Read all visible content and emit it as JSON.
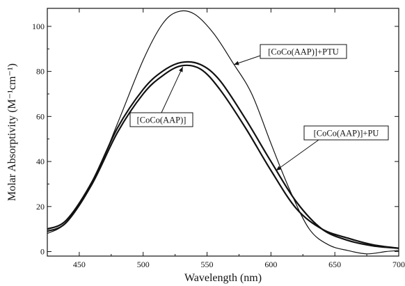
{
  "chart_data": {
    "type": "line",
    "xlabel": "Wavelength (nm)",
    "ylabel": "Molar Absorptivity (M⁻¹cm⁻¹)",
    "xlim": [
      425,
      700
    ],
    "ylim": [
      -2,
      108
    ],
    "xticks": [
      450,
      500,
      550,
      600,
      650,
      700
    ],
    "yticks": [
      0,
      20,
      40,
      60,
      80,
      100
    ],
    "grid": false,
    "series": [
      {
        "name": "[CoCo(AAP)]+PTU",
        "x": [
          425,
          440,
          460,
          480,
          500,
          515,
          527,
          540,
          555,
          570,
          585,
          600,
          615,
          630,
          645,
          660,
          675,
          690,
          700
        ],
        "y": [
          8,
          13,
          30,
          57,
          85,
          101,
          106.5,
          105.5,
          97,
          84,
          70,
          48,
          27,
          10,
          3,
          0.5,
          -1,
          0,
          0.5
        ],
        "stroke_width": 1.2
      },
      {
        "name": "[CoCo(AAP)]",
        "x": [
          425,
          440,
          460,
          480,
          500,
          515,
          530,
          545,
          560,
          580,
          600,
          620,
          640,
          660,
          680,
          700
        ],
        "y": [
          10,
          14,
          31,
          55,
          72,
          80,
          84,
          83,
          76,
          59,
          40,
          22,
          10,
          5,
          2.5,
          1.5
        ],
        "stroke_width": 2.2
      },
      {
        "name": "[CoCo(AAP)]+PU",
        "x": [
          425,
          440,
          460,
          480,
          500,
          515,
          530,
          545,
          560,
          580,
          600,
          620,
          640,
          660,
          680,
          700
        ],
        "y": [
          9,
          13,
          30,
          53,
          70,
          78,
          82.5,
          81,
          72,
          55,
          36,
          19,
          10,
          6,
          3,
          1.5
        ],
        "stroke_width": 2.2
      }
    ],
    "annotations": [
      {
        "text": "[CoCo(AAP)]+PTU",
        "target_x": 571,
        "target_y": 83
      },
      {
        "text": "[CoCo(AAP)]",
        "target_x": 531,
        "target_y": 82
      },
      {
        "text": "[CoCo(AAP)]+PU",
        "target_x": 604,
        "target_y": 36
      }
    ]
  }
}
